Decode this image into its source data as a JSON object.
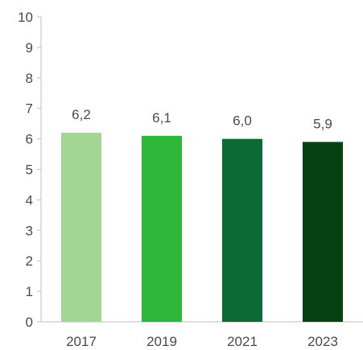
{
  "chart_data": {
    "type": "bar",
    "categories": [
      "2017",
      "2019",
      "2021",
      "2023"
    ],
    "values": [
      6.2,
      6.1,
      6.0,
      5.9
    ],
    "data_labels": [
      "6,2",
      "6,1",
      "6,0",
      "5,9"
    ],
    "bar_colors": [
      "#a3d595",
      "#2db83a",
      "#0a6b35",
      "#064211"
    ],
    "ylim": [
      0,
      10
    ],
    "y_ticks": [
      0,
      1,
      2,
      3,
      4,
      5,
      6,
      7,
      8,
      9,
      10
    ],
    "grid": false,
    "legend": "none",
    "title": "",
    "xlabel": "",
    "ylabel": ""
  },
  "colors": {
    "axis": "#bfbfbf",
    "text": "#4a4a4a"
  }
}
